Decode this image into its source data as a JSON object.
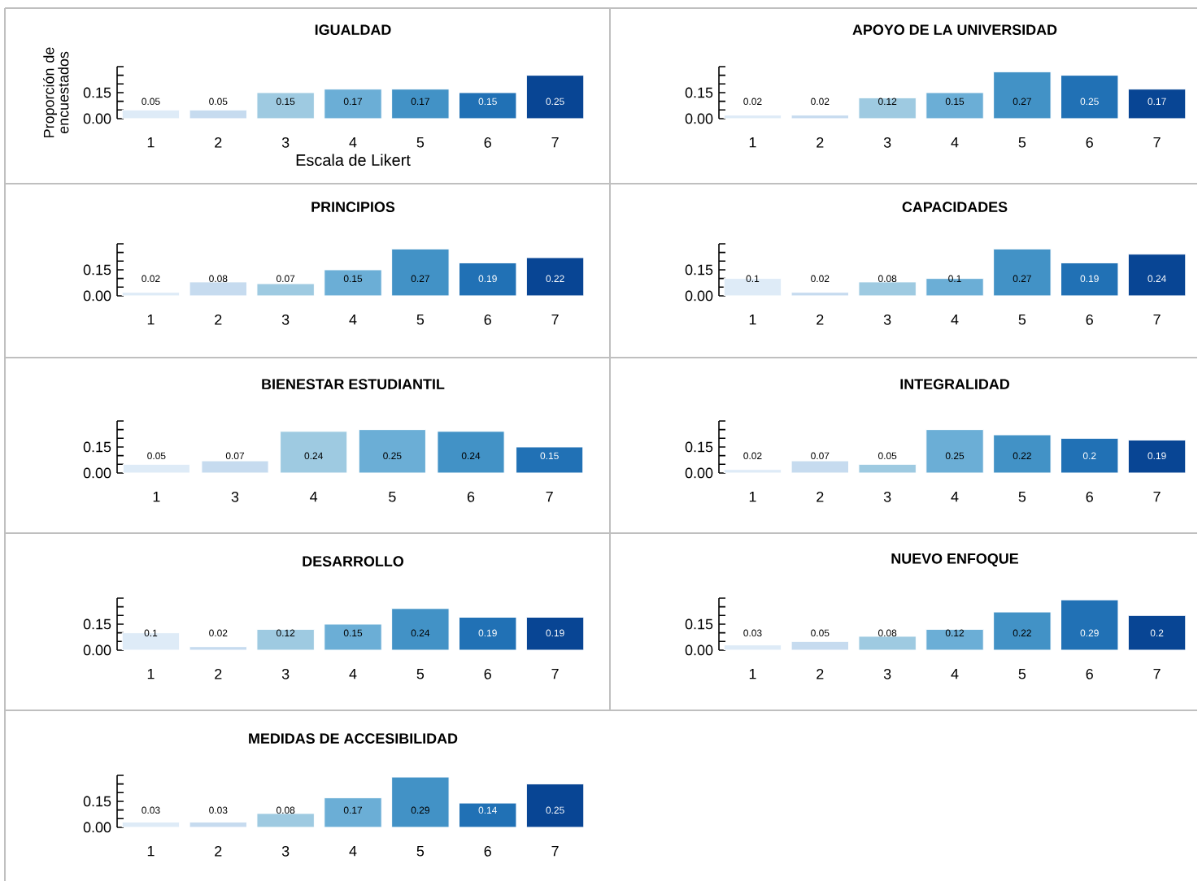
{
  "chart_data": [
    {
      "type": "bar",
      "title": "IGUALDAD",
      "xlabel": "Escala de Likert",
      "ylabel": "Proporción de encuestados",
      "categories": [
        "1",
        "2",
        "3",
        "4",
        "5",
        "6",
        "7"
      ],
      "values": [
        0.05,
        0.05,
        0.15,
        0.17,
        0.17,
        0.15,
        0.25
      ],
      "colors": [
        "#deebf7",
        "#c6dbef",
        "#9ecae1",
        "#6baed6",
        "#4292c6",
        "#2171b5",
        "#084594"
      ],
      "ylim": [
        0,
        0.3
      ],
      "yticks": [
        {
          "value": 0,
          "label": "0.00"
        },
        {
          "value": 0.05,
          "label": null
        },
        {
          "value": 0.1,
          "label": null
        },
        {
          "value": 0.15,
          "label": "0.15"
        },
        {
          "value": 0.2,
          "label": null
        },
        {
          "value": 0.25,
          "label": null
        },
        {
          "value": 0.3,
          "label": null
        }
      ],
      "data_labels": true
    },
    {
      "type": "bar",
      "title": "APOYO DE LA UNIVERSIDAD",
      "categories": [
        "1",
        "2",
        "3",
        "4",
        "5",
        "6",
        "7"
      ],
      "values": [
        0.02,
        0.02,
        0.12,
        0.15,
        0.27,
        0.25,
        0.17
      ],
      "colors": [
        "#deebf7",
        "#c6dbef",
        "#9ecae1",
        "#6baed6",
        "#4292c6",
        "#2171b5",
        "#084594"
      ],
      "ylim": [
        0,
        0.3
      ],
      "yticks": [
        {
          "value": 0,
          "label": "0.00"
        },
        {
          "value": 0.05,
          "label": null
        },
        {
          "value": 0.1,
          "label": null
        },
        {
          "value": 0.15,
          "label": "0.15"
        },
        {
          "value": 0.2,
          "label": null
        },
        {
          "value": 0.25,
          "label": null
        },
        {
          "value": 0.3,
          "label": null
        }
      ],
      "data_labels": true
    },
    {
      "type": "bar",
      "title": "PRINCIPIOS",
      "categories": [
        "1",
        "2",
        "3",
        "4",
        "5",
        "6",
        "7"
      ],
      "values": [
        0.02,
        0.08,
        0.07,
        0.15,
        0.27,
        0.19,
        0.22
      ],
      "colors": [
        "#deebf7",
        "#c6dbef",
        "#9ecae1",
        "#6baed6",
        "#4292c6",
        "#2171b5",
        "#084594"
      ],
      "ylim": [
        0,
        0.3
      ],
      "yticks": [
        {
          "value": 0,
          "label": "0.00"
        },
        {
          "value": 0.05,
          "label": null
        },
        {
          "value": 0.1,
          "label": null
        },
        {
          "value": 0.15,
          "label": "0.15"
        },
        {
          "value": 0.2,
          "label": null
        },
        {
          "value": 0.25,
          "label": null
        },
        {
          "value": 0.3,
          "label": null
        }
      ],
      "data_labels": true
    },
    {
      "type": "bar",
      "title": "CAPACIDADES",
      "categories": [
        "1",
        "2",
        "3",
        "4",
        "5",
        "6",
        "7"
      ],
      "values": [
        0.1,
        0.02,
        0.08,
        0.1,
        0.27,
        0.19,
        0.24
      ],
      "colors": [
        "#deebf7",
        "#c6dbef",
        "#9ecae1",
        "#6baed6",
        "#4292c6",
        "#2171b5",
        "#084594"
      ],
      "ylim": [
        0,
        0.3
      ],
      "yticks": [
        {
          "value": 0,
          "label": "0.00"
        },
        {
          "value": 0.05,
          "label": null
        },
        {
          "value": 0.1,
          "label": null
        },
        {
          "value": 0.15,
          "label": "0.15"
        },
        {
          "value": 0.2,
          "label": null
        },
        {
          "value": 0.25,
          "label": null
        },
        {
          "value": 0.3,
          "label": null
        }
      ],
      "data_labels": true
    },
    {
      "type": "bar",
      "title": "BIENESTAR ESTUDIANTIL",
      "categories": [
        "1",
        "3",
        "4",
        "5",
        "6",
        "7"
      ],
      "values": [
        0.05,
        0.07,
        0.24,
        0.25,
        0.24,
        0.15
      ],
      "colors": [
        "#deebf7",
        "#c6dbef",
        "#9ecae1",
        "#6baed6",
        "#4292c6",
        "#2171b5"
      ],
      "ylim": [
        0,
        0.3
      ],
      "yticks": [
        {
          "value": 0,
          "label": "0.00"
        },
        {
          "value": 0.05,
          "label": null
        },
        {
          "value": 0.1,
          "label": null
        },
        {
          "value": 0.15,
          "label": "0.15"
        },
        {
          "value": 0.2,
          "label": null
        },
        {
          "value": 0.25,
          "label": null
        },
        {
          "value": 0.3,
          "label": null
        }
      ],
      "data_labels": true
    },
    {
      "type": "bar",
      "title": "INTEGRALIDAD",
      "categories": [
        "1",
        "2",
        "3",
        "4",
        "5",
        "6",
        "7"
      ],
      "values": [
        0.02,
        0.07,
        0.05,
        0.25,
        0.22,
        0.2,
        0.19
      ],
      "colors": [
        "#deebf7",
        "#c6dbef",
        "#9ecae1",
        "#6baed6",
        "#4292c6",
        "#2171b5",
        "#084594"
      ],
      "ylim": [
        0,
        0.3
      ],
      "yticks": [
        {
          "value": 0,
          "label": "0.00"
        },
        {
          "value": 0.05,
          "label": null
        },
        {
          "value": 0.1,
          "label": null
        },
        {
          "value": 0.15,
          "label": "0.15"
        },
        {
          "value": 0.2,
          "label": null
        },
        {
          "value": 0.25,
          "label": null
        },
        {
          "value": 0.3,
          "label": null
        }
      ],
      "data_labels": true
    },
    {
      "type": "bar",
      "title": "DESARROLLO",
      "categories": [
        "1",
        "2",
        "3",
        "4",
        "5",
        "6",
        "7"
      ],
      "values": [
        0.1,
        0.02,
        0.12,
        0.15,
        0.24,
        0.19,
        0.19
      ],
      "colors": [
        "#deebf7",
        "#c6dbef",
        "#9ecae1",
        "#6baed6",
        "#4292c6",
        "#2171b5",
        "#084594"
      ],
      "ylim": [
        0,
        0.3
      ],
      "yticks": [
        {
          "value": 0,
          "label": "0.00"
        },
        {
          "value": 0.05,
          "label": null
        },
        {
          "value": 0.1,
          "label": null
        },
        {
          "value": 0.15,
          "label": "0.15"
        },
        {
          "value": 0.2,
          "label": null
        },
        {
          "value": 0.25,
          "label": null
        },
        {
          "value": 0.3,
          "label": null
        }
      ],
      "data_labels": true
    },
    {
      "type": "bar",
      "title": "NUEVO ENFOQUE",
      "categories": [
        "1",
        "2",
        "3",
        "4",
        "5",
        "6",
        "7"
      ],
      "values": [
        0.03,
        0.05,
        0.08,
        0.12,
        0.22,
        0.29,
        0.2
      ],
      "colors": [
        "#deebf7",
        "#c6dbef",
        "#9ecae1",
        "#6baed6",
        "#4292c6",
        "#2171b5",
        "#084594"
      ],
      "ylim": [
        0,
        0.3
      ],
      "yticks": [
        {
          "value": 0,
          "label": "0.00"
        },
        {
          "value": 0.05,
          "label": null
        },
        {
          "value": 0.1,
          "label": null
        },
        {
          "value": 0.15,
          "label": "0.15"
        },
        {
          "value": 0.2,
          "label": null
        },
        {
          "value": 0.25,
          "label": null
        },
        {
          "value": 0.3,
          "label": null
        }
      ],
      "data_labels": true
    },
    {
      "type": "bar",
      "title": "MEDIDAS DE ACCESIBILIDAD",
      "categories": [
        "1",
        "2",
        "3",
        "4",
        "5",
        "6",
        "7"
      ],
      "values": [
        0.03,
        0.03,
        0.08,
        0.17,
        0.29,
        0.14,
        0.25
      ],
      "colors": [
        "#deebf7",
        "#c6dbef",
        "#9ecae1",
        "#6baed6",
        "#4292c6",
        "#2171b5",
        "#084594"
      ],
      "ylim": [
        0,
        0.3
      ],
      "yticks": [
        {
          "value": 0,
          "label": "0.00"
        },
        {
          "value": 0.05,
          "label": null
        },
        {
          "value": 0.1,
          "label": null
        },
        {
          "value": 0.15,
          "label": "0.15"
        },
        {
          "value": 0.2,
          "label": null
        },
        {
          "value": 0.25,
          "label": null
        },
        {
          "value": 0.3,
          "label": null
        }
      ],
      "data_labels": true
    }
  ]
}
